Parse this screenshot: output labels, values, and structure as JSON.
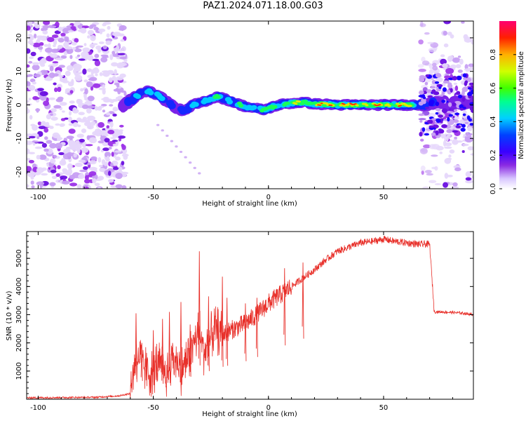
{
  "title": "PAZ1.2024.071.18.00.G03",
  "colors": {
    "snr_line": "#e8302a",
    "noise_blob": "#9b30e8",
    "noise_blob_light": "#d8b8f5",
    "colormap": [
      "#ffffff",
      "#d9c7ff",
      "#8a2be2",
      "#3a00ff",
      "#0040ff",
      "#00d0ff",
      "#00ff90",
      "#40ff00",
      "#d0ff00",
      "#ffb000",
      "#ff2000",
      "#ff0070"
    ]
  },
  "chart_data": [
    {
      "type": "heatmap",
      "title": "PAZ1.2024.071.18.00.G03",
      "xlabel": "Height of straight line (km)",
      "ylabel": "Frequency (Hz)",
      "xlim": [
        -105,
        89
      ],
      "ylim": [
        -25,
        25
      ],
      "xticks": [
        -100,
        -50,
        0,
        50
      ],
      "yticks": [
        -20,
        -10,
        0,
        10,
        20
      ],
      "grid": false,
      "ridge": {
        "x": [
          -63,
          -58,
          -55,
          -52,
          -48,
          -44,
          -40,
          -36,
          -33,
          -30,
          -26,
          -22,
          -18,
          -14,
          -10,
          -6,
          -2,
          2,
          6,
          10,
          15,
          20,
          30,
          40,
          50,
          60,
          66,
          70,
          75,
          80,
          85,
          89
        ],
        "y": [
          0,
          2,
          4,
          4,
          3,
          1,
          -1,
          -2,
          0,
          0.5,
          1.5,
          2.5,
          1.5,
          0.5,
          -0.5,
          -1,
          -1.5,
          -0.5,
          0.2,
          0.5,
          0.8,
          0.3,
          0,
          0,
          0,
          0,
          0,
          0.5,
          0.5,
          1,
          0.5,
          1
        ],
        "amplitude": [
          0.25,
          0.4,
          0.45,
          0.55,
          0.5,
          0.4,
          0.35,
          0.35,
          0.45,
          0.55,
          0.5,
          0.6,
          0.55,
          0.5,
          0.55,
          0.6,
          0.65,
          0.6,
          0.7,
          0.7,
          0.8,
          0.85,
          0.95,
          0.95,
          0.9,
          0.85,
          0.45,
          0.3,
          0.25,
          0.25,
          0.3,
          0.3
        ]
      },
      "noise_regions": [
        {
          "x": [
            -105,
            -62
          ],
          "y": [
            -25,
            25
          ]
        },
        {
          "x": [
            66,
            89
          ],
          "y": [
            -25,
            25
          ]
        }
      ],
      "colorbar": {
        "label": "Normalized spectral amplitude",
        "range": [
          0,
          1
        ],
        "ticks": [
          0.0,
          0.2,
          0.4,
          0.6,
          0.8
        ]
      }
    },
    {
      "type": "line",
      "xlabel": "Height of straight line (km)",
      "ylabel": "SNR (10 * v/v)",
      "xlim": [
        -105,
        89
      ],
      "ylim": [
        0,
        5950
      ],
      "xticks": [
        -100,
        -50,
        0,
        50
      ],
      "yticks": [
        1000,
        2000,
        3000,
        4000,
        5000
      ],
      "grid": false,
      "x": [
        -105,
        -90,
        -75,
        -65,
        -60,
        -58,
        -56,
        -54,
        -52,
        -50,
        -48,
        -46,
        -44,
        -42,
        -40,
        -38,
        -36,
        -34,
        -32,
        -30,
        -28,
        -26,
        -24,
        -22,
        -20,
        -15,
        -10,
        -5,
        0,
        5,
        10,
        15,
        20,
        25,
        30,
        35,
        40,
        45,
        50,
        55,
        60,
        65,
        70,
        72,
        75,
        80,
        85,
        89
      ],
      "y": [
        50,
        60,
        70,
        120,
        200,
        1400,
        1500,
        1100,
        900,
        1000,
        1300,
        1100,
        800,
        1500,
        1400,
        1000,
        1300,
        1600,
        2100,
        2400,
        1700,
        2000,
        2400,
        2400,
        2300,
        2500,
        2700,
        3000,
        3400,
        3700,
        4000,
        4300,
        4600,
        4950,
        5250,
        5400,
        5550,
        5600,
        5680,
        5600,
        5550,
        5500,
        5500,
        3100,
        3100,
        3080,
        3050,
        3000
      ],
      "spikes": [
        {
          "x": -57.5,
          "y": 3050
        },
        {
          "x": -55,
          "y": 2000
        },
        {
          "x": -50,
          "y": 2450
        },
        {
          "x": -46,
          "y": 2850
        },
        {
          "x": -43,
          "y": 3100
        },
        {
          "x": -38,
          "y": 3450
        },
        {
          "x": -34,
          "y": 2650
        },
        {
          "x": -30,
          "y": 5250
        },
        {
          "x": -26,
          "y": 3650
        },
        {
          "x": -20,
          "y": 4350
        },
        {
          "x": -18,
          "y": 3600
        },
        {
          "x": -10,
          "y": 3400
        },
        {
          "x": -5,
          "y": 3600
        },
        {
          "x": 7,
          "y": 4650
        },
        {
          "x": 15,
          "y": 4850
        }
      ]
    }
  ]
}
